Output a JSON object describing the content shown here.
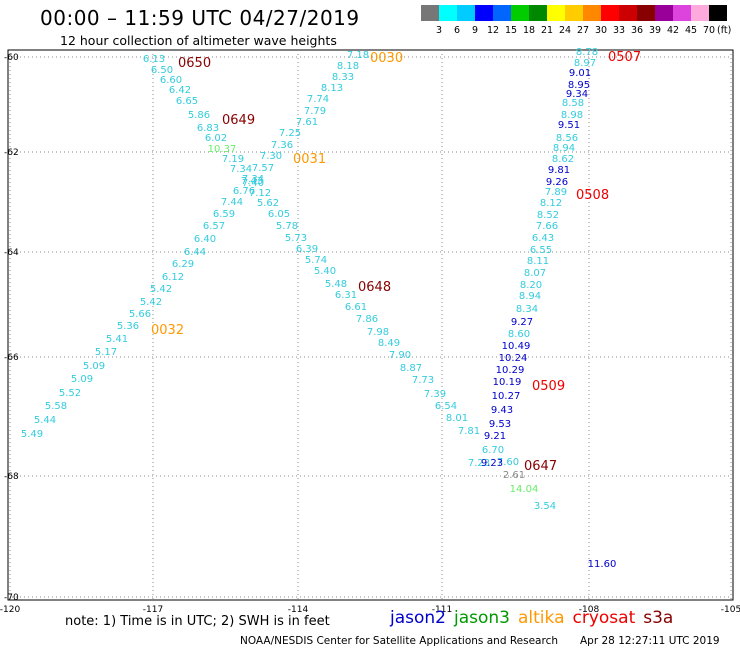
{
  "header": {
    "title": "00:00 – 11:59 UTC 04/27/2019",
    "subtitle": "12 hour collection of altimeter wave heights"
  },
  "colorbar": {
    "colors": [
      "#777777",
      "#00ffff",
      "#00ccff",
      "#0000ff",
      "#0066ff",
      "#00cc00",
      "#008800",
      "#ffff00",
      "#ffcc00",
      "#ff8800",
      "#ff0000",
      "#cc0000",
      "#880000",
      "#990099",
      "#dd44dd",
      "#ffaadd",
      "#000000"
    ],
    "labels": [
      "3",
      "6",
      "9",
      "12",
      "15",
      "18",
      "21",
      "24",
      "27",
      "30",
      "33",
      "36",
      "39",
      "42",
      "45",
      "70"
    ],
    "unit": "(ft)"
  },
  "axes": {
    "y_ticks": [
      "-60",
      "-62",
      "-64",
      "-66",
      "-68",
      "-70"
    ],
    "x_ticks": [
      "-120",
      "-117",
      "-114",
      "-111",
      "-108",
      "-105"
    ]
  },
  "passes": [
    {
      "satellite": "altika",
      "color": "#33ccdd",
      "values": [
        "7.18",
        "8.18",
        "8.33",
        "8.13",
        "7.74",
        "7.79",
        "7.61",
        "7.25",
        "7.36",
        "7.30",
        "7.57",
        "7.34",
        "7.40",
        "6.76",
        "7.44",
        "6.59",
        "6.57",
        "6.40",
        "6.44",
        "6.29",
        "6.12",
        "5.42",
        "5.42",
        "5.66",
        "5.36",
        "5.41",
        "5.17",
        "5.09",
        "5.09",
        "5.52",
        "5.58",
        "5.44",
        "5.49"
      ]
    },
    {
      "satellite": "cryosat",
      "color": "#33ccdd",
      "values": [
        "6.13",
        "6.50",
        "6.60",
        "6.42",
        "6.65",
        "5.86",
        "6.83",
        "6.02",
        "7.19",
        "7.34",
        "7.43",
        "7.12",
        "5.62",
        "6.05",
        "5.78",
        "5.73",
        "6.39",
        "5.74",
        "5.40",
        "5.48",
        "6.31",
        "6.61",
        "7.86",
        "7.98",
        "8.49",
        "7.90",
        "8.87",
        "7.73",
        "7.39",
        "6.54",
        "8.01",
        "7.81",
        "7.23",
        "6.70",
        "7.60"
      ]
    },
    {
      "satellite": "jason3",
      "color": "#66ee66",
      "values": [
        "10.37",
        "14.04"
      ]
    },
    {
      "satellite": "cryosat",
      "color": "#33ccdd",
      "values": [
        "3.54"
      ]
    },
    {
      "satellite": "cryosat",
      "color": "#888888",
      "values": [
        "2.61"
      ]
    },
    {
      "satellite": "cryosat",
      "color": "#33ccdd",
      "values": [
        "8.78",
        "8.97",
        "8.58",
        "8.98",
        "8.56",
        "8.94",
        "8.62",
        "7.89",
        "8.12",
        "8.52",
        "7.66",
        "6.43",
        "6.55",
        "8.11",
        "8.07",
        "8.20",
        "8.94",
        "8.34",
        "8.60"
      ]
    },
    {
      "satellite": "jason2",
      "color": "#0000cc",
      "values": [
        "9.01",
        "8.95",
        "9.34",
        "9.51",
        "9.81",
        "9.26",
        "9.27",
        "10.49",
        "10.24",
        "10.29",
        "10.19",
        "10.27",
        "9.43",
        "9.53",
        "9.21",
        "9.23",
        "11.60"
      ]
    }
  ],
  "time_labels": [
    {
      "text": "0030",
      "color": "#ff9900"
    },
    {
      "text": "0031",
      "color": "#ff9900"
    },
    {
      "text": "0032",
      "color": "#ff9900"
    },
    {
      "text": "0650",
      "color": "#880000"
    },
    {
      "text": "0649",
      "color": "#880000"
    },
    {
      "text": "0648",
      "color": "#880000"
    },
    {
      "text": "0647",
      "color": "#880000"
    },
    {
      "text": "0507",
      "color": "#ee0000"
    },
    {
      "text": "0508",
      "color": "#ee0000"
    },
    {
      "text": "0509",
      "color": "#ee0000"
    }
  ],
  "footer": {
    "note": "note: 1) Time is in UTC; 2) SWH is in feet",
    "legend": [
      {
        "name": "jason2",
        "color": "#0000cc"
      },
      {
        "name": "jason3",
        "color": "#009900"
      },
      {
        "name": "altika",
        "color": "#ff9900"
      },
      {
        "name": "cryosat",
        "color": "#ee0000"
      },
      {
        "name": "s3a",
        "color": "#880000"
      }
    ],
    "credit": "NOAA/NESDIS Center for Satellite Applications and Research",
    "timestamp": "Apr 28 12:27:11 UTC 2019"
  }
}
